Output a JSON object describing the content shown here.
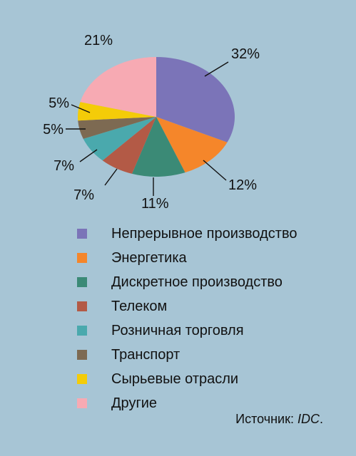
{
  "colors": {
    "background": "#a7c5d5"
  },
  "chart_data": {
    "type": "pie",
    "title": "",
    "categories": [
      "Непрерывное производство",
      "Энергетика",
      "Дискретное производство",
      "Телеком",
      "Розничная торговля",
      "Транспорт",
      "Сырьевые отрасли",
      "Другие"
    ],
    "values": [
      32,
      12,
      11,
      7,
      7,
      5,
      5,
      21
    ],
    "value_labels": [
      "32%",
      "12%",
      "11%",
      "7%",
      "7%",
      "5%",
      "5%",
      "21%"
    ],
    "colors": [
      "#7b74b8",
      "#f5862a",
      "#3b8a76",
      "#b35a46",
      "#4aa9ad",
      "#7d6a52",
      "#f4cc08",
      "#f7aab3"
    ],
    "legend_position": "bottom-left"
  },
  "source": {
    "prefix": "Источник: ",
    "name": "IDC",
    "suffix": "."
  }
}
